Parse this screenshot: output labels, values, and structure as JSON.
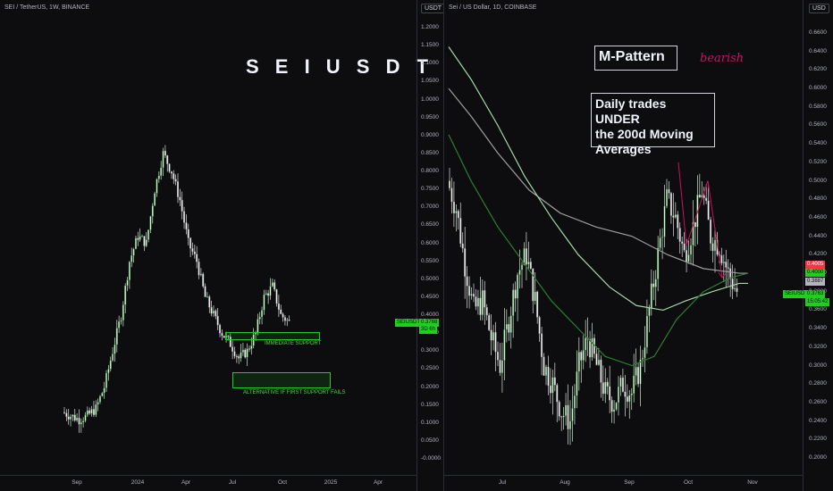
{
  "left_chart": {
    "symbol": "SEI / TetherUS, 1W, BINANCE",
    "title": "S E I  U S D T",
    "currency_badge": "USDT",
    "y_ticks": [
      "1.2000",
      "1.1500",
      "1.1000",
      "1.0500",
      "1.0000",
      "0.9500",
      "0.9000",
      "0.8500",
      "0.8000",
      "0.7500",
      "0.7000",
      "0.6500",
      "0.6000",
      "0.5500",
      "0.5000",
      "0.4500",
      "0.4000",
      "0.3500",
      "0.3000",
      "0.2500",
      "0.2000",
      "0.1500",
      "0.1000",
      "0.0500",
      "-0.0000"
    ],
    "x_ticks": [
      "Sep",
      "2024",
      "Apr",
      "Jul",
      "Oct",
      "2025",
      "Apr"
    ],
    "current_price_tag": "SEIUSDT",
    "current_price": "0.3768",
    "current_countdown": "3D 6h",
    "zone1_label": "IMMEDIATE SUPPORT",
    "zone2_label": "ALTERNATIVE IF FIRST SUPPORT FAILS",
    "colors": {
      "up": "#e8f5e9",
      "down": "#f5f5f5",
      "support": "#22cc22"
    }
  },
  "right_chart": {
    "symbol": "Sei / US Dollar, 1D, COINBASE",
    "currency_badge": "USD",
    "pattern_label": "M-Pattern",
    "bearish_label": "bearish",
    "annotation": "Daily trades UNDER the 200d Moving Averages",
    "annotation_lines": [
      "Daily trades UNDER",
      "the 200d Moving",
      "Averages"
    ],
    "y_ticks": [
      "0.6600",
      "0.6400",
      "0.6200",
      "0.6000",
      "0.5800",
      "0.5600",
      "0.5400",
      "0.5200",
      "0.5000",
      "0.4800",
      "0.4600",
      "0.4400",
      "0.4200",
      "0.4000",
      "0.3800",
      "0.3600",
      "0.3400",
      "0.3200",
      "0.3000",
      "0.2800",
      "0.2600",
      "0.2400",
      "0.2200",
      "0.2000"
    ],
    "x_ticks": [
      "Jul",
      "Aug",
      "Sep",
      "Oct",
      "Nov"
    ],
    "ma_gray_value": "0.4005",
    "ma_green_value": "0.4000",
    "ma_light_value": "0.3887",
    "current_price_tag": "SEIUSD",
    "current_price": "0.3763",
    "current_countdown": "15:05:42",
    "colors": {
      "ma200": "#9e9e9e",
      "ma_light": "#a5d6a7",
      "ma_green": "#2e7d32",
      "pattern": "#c2185b"
    }
  },
  "chart_data": [
    {
      "type": "candlestick",
      "title": "S E I  U S D T",
      "ylim": [
        0,
        1.2
      ],
      "x_labels": [
        "Sep",
        "2024",
        "Apr",
        "Jul",
        "Oct",
        "2025",
        "Apr"
      ],
      "approx_close_path": [
        0.13,
        0.12,
        0.11,
        0.12,
        0.14,
        0.2,
        0.3,
        0.4,
        0.55,
        0.62,
        0.6,
        0.75,
        0.85,
        0.8,
        0.72,
        0.6,
        0.55,
        0.45,
        0.4,
        0.35,
        0.32,
        0.28,
        0.3,
        0.35,
        0.45,
        0.48,
        0.4,
        0.38
      ],
      "annotations": [
        "IMMEDIATE SUPPORT",
        "ALTERNATIVE IF FIRST SUPPORT FAILS"
      ],
      "support_zones": [
        [
          0.33,
          0.35
        ],
        [
          0.2,
          0.24
        ]
      ],
      "last_price": 0.3768
    },
    {
      "type": "candlestick",
      "ylim": [
        0.2,
        0.66
      ],
      "x_labels": [
        "Jul",
        "Aug",
        "Sep",
        "Oct",
        "Nov"
      ],
      "approx_close_path": [
        0.5,
        0.47,
        0.41,
        0.36,
        0.37,
        0.33,
        0.3,
        0.35,
        0.4,
        0.42,
        0.37,
        0.3,
        0.28,
        0.25,
        0.24,
        0.3,
        0.33,
        0.3,
        0.27,
        0.26,
        0.28,
        0.27,
        0.3,
        0.36,
        0.42,
        0.48,
        0.46,
        0.42,
        0.45,
        0.49,
        0.44,
        0.43,
        0.4,
        0.38
      ],
      "series": [
        {
          "name": "MA 200",
          "last": 0.4005
        },
        {
          "name": "MA (light green)",
          "last": 0.3887
        },
        {
          "name": "MA (dark green)",
          "last": 0.4
        }
      ],
      "annotations": [
        "M-Pattern",
        "bearish",
        "Daily trades UNDER the 200d Moving Averages"
      ],
      "last_price": 0.3763
    }
  ]
}
